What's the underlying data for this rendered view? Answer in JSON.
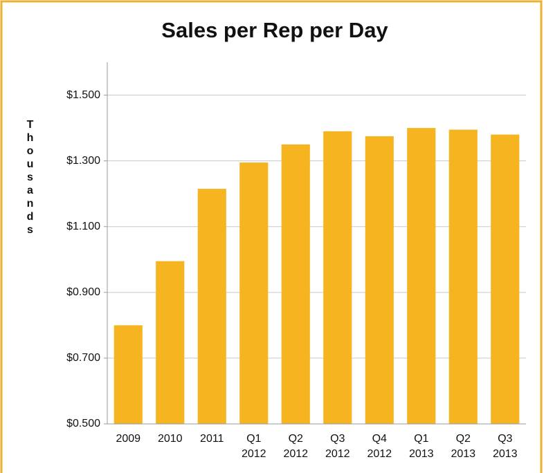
{
  "chart_data": {
    "type": "bar",
    "title": "Sales per Rep per Day",
    "y_label": "Thousands",
    "categories": [
      "2009",
      "2010",
      "2011",
      "Q1 2012",
      "Q2 2012",
      "Q3 2012",
      "Q4 2012",
      "Q1 2013",
      "Q2 2013",
      "Q3 2013"
    ],
    "values": [
      0.8,
      0.995,
      1.215,
      1.295,
      1.35,
      1.39,
      1.375,
      1.4,
      1.395,
      1.38
    ],
    "color": "#f7b421",
    "ylim": [
      0.5,
      1.6
    ],
    "yticks": [
      {
        "value": 0.5,
        "label": "$0.500"
      },
      {
        "value": 0.7,
        "label": "$0.700"
      },
      {
        "value": 0.9,
        "label": "$0.900"
      },
      {
        "value": 1.1,
        "label": "$1.100"
      },
      {
        "value": 1.3,
        "label": "$1.300"
      },
      {
        "value": 1.5,
        "label": "$1.500"
      }
    ],
    "grid": true
  }
}
